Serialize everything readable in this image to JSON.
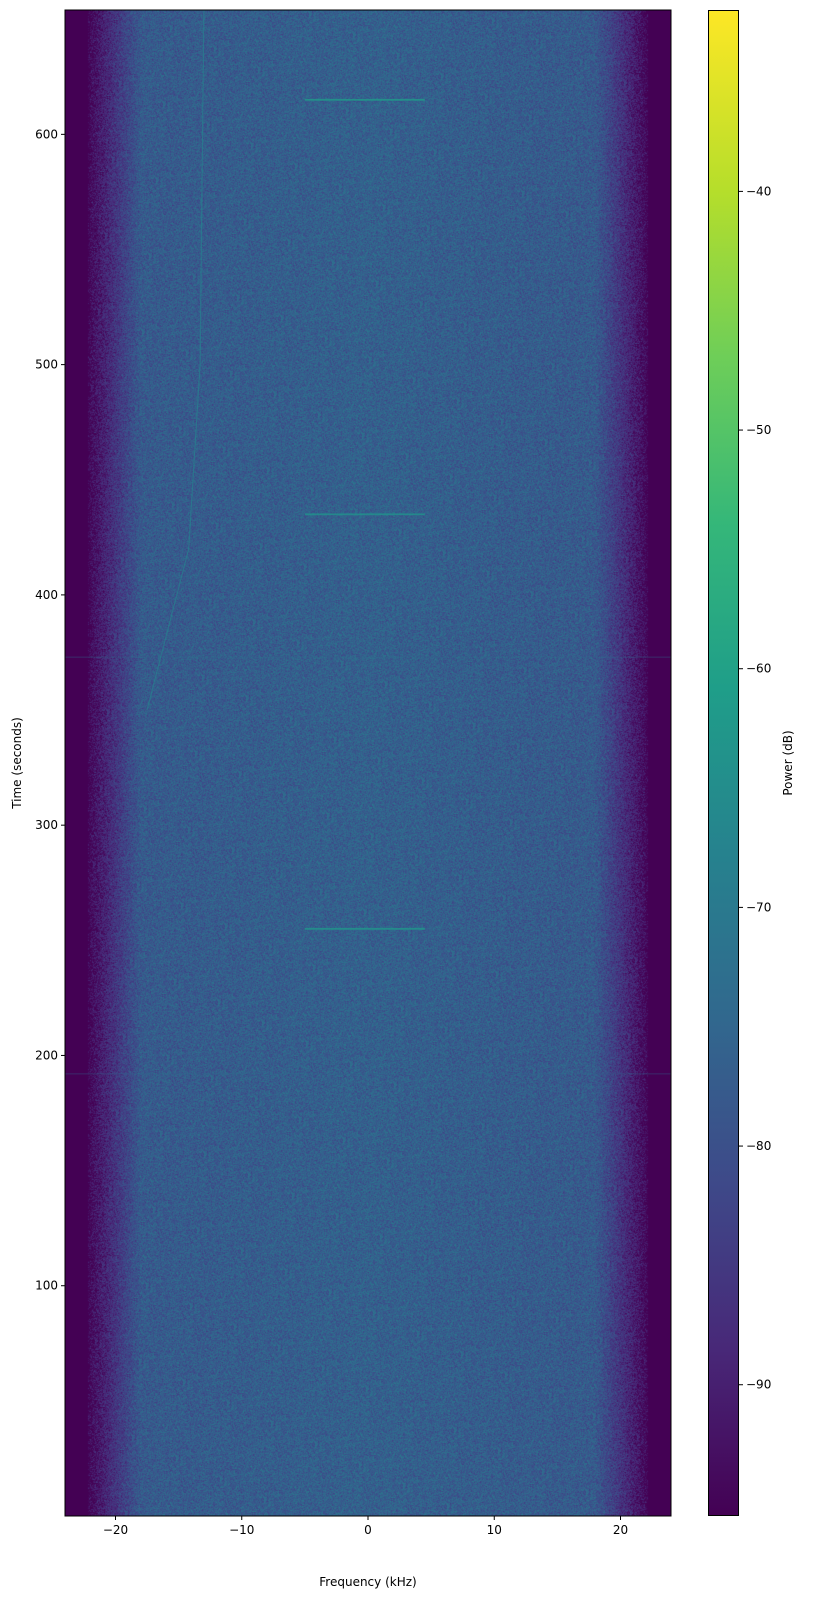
{
  "chart_data": {
    "type": "heatmap",
    "subtype": "spectrogram",
    "xlabel": "Frequency (kHz)",
    "ylabel": "Time (seconds)",
    "xlim": [
      -24,
      24
    ],
    "ylim": [
      0,
      654
    ],
    "xticks": [
      -20,
      -10,
      0,
      10,
      20
    ],
    "xtick_labels": [
      "−20",
      "−10",
      "0",
      "10",
      "20"
    ],
    "yticks": [
      100,
      200,
      300,
      400,
      500,
      600
    ],
    "ytick_labels": [
      "100",
      "200",
      "300",
      "400",
      "500",
      "600"
    ],
    "colormap": "viridis",
    "colorbar": {
      "label": "Power (dB)",
      "range": [
        -95.5,
        -32.4
      ],
      "ticks": [
        -90,
        -80,
        -70,
        -60,
        -50,
        -40
      ],
      "tick_labels": [
        "−90",
        "−80",
        "−70",
        "−60",
        "−50",
        "−40"
      ]
    },
    "noise_floor_db": -76,
    "band_edge_db": -94,
    "passband_khz": [
      -18,
      18
    ],
    "stopband_khz": [
      -22,
      22
    ],
    "features": [
      {
        "kind": "burst",
        "time_s": 615,
        "freq_khz": [
          -5,
          4.5
        ],
        "power_db": -62
      },
      {
        "kind": "burst",
        "time_s": 435,
        "freq_khz": [
          -5,
          4.5
        ],
        "power_db": -64
      },
      {
        "kind": "burst",
        "time_s": 255,
        "freq_khz": [
          -5,
          4.5
        ],
        "power_db": -63
      },
      {
        "kind": "drifting-tone",
        "points": [
          [
            -17.5,
            350
          ],
          [
            -14.2,
            420
          ],
          [
            -13.3,
            500
          ],
          [
            -13,
            654
          ]
        ],
        "power_db": -68
      },
      {
        "kind": "broadband-line",
        "time_s": 373,
        "freq_khz": [
          -24,
          24
        ],
        "power_db": -72
      },
      {
        "kind": "broadband-line",
        "time_s": 192,
        "freq_khz": [
          -24,
          24
        ],
        "power_db": -74
      }
    ],
    "grid": false
  }
}
